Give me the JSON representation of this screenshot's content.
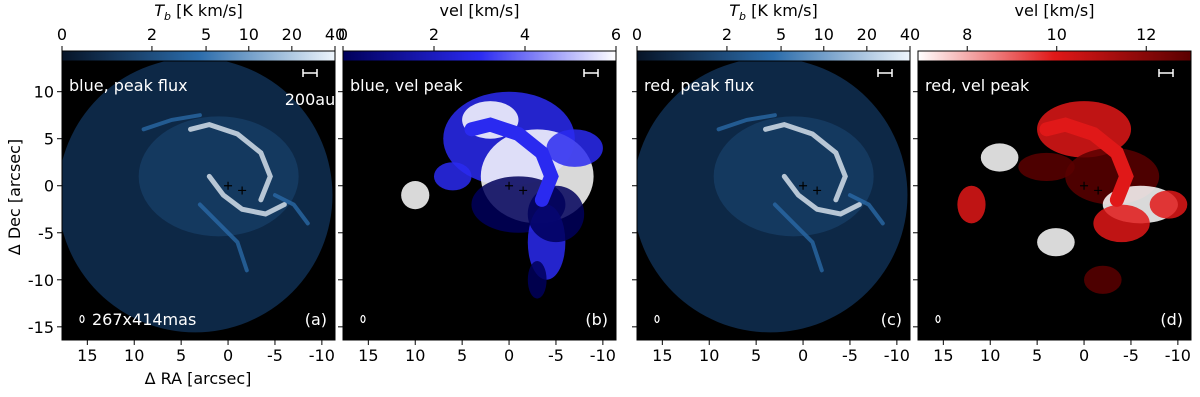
{
  "figure": {
    "ylabel": "Δ Dec [arcsec]",
    "xlabel": "Δ RA [arcsec]",
    "xlim": [
      17.7,
      -11.4
    ],
    "xticks": [
      15,
      10,
      5,
      0,
      -5,
      -10
    ],
    "ylim": [
      -16.4,
      13.9
    ],
    "yticks": [
      -15,
      -10,
      -5,
      0,
      5,
      10
    ],
    "scalebar_label": "200au",
    "beam_label": "267x414mas",
    "panels": [
      {
        "title": "blue, peak flux",
        "tag": "(a)",
        "kind": "flux",
        "cmap": [
          "#071427",
          "#2b6cab",
          "#eef5fc"
        ],
        "colorbar": {
          "label": {
            "symbol": "T",
            "subscript": "b",
            "unit": " [K km/s]"
          },
          "lim": [
            0,
            40
          ],
          "ticks": [
            0,
            2,
            5,
            10,
            20,
            40
          ],
          "scale": "asinh"
        }
      },
      {
        "title": "blue, vel peak",
        "tag": "(b)",
        "kind": "vel",
        "cmap": [
          "#00005a",
          "#2a2af0",
          "#ffffff"
        ],
        "colorbar": {
          "label": {
            "text": "vel [km/s]"
          },
          "lim": [
            0,
            6
          ],
          "ticks": [
            0,
            2,
            4,
            6
          ],
          "scale": "linear"
        }
      },
      {
        "title": "red, peak flux",
        "tag": "(c)",
        "kind": "flux",
        "cmap": [
          "#071427",
          "#2b6cab",
          "#eef5fc"
        ],
        "colorbar": {
          "label": {
            "symbol": "T",
            "subscript": "b",
            "unit": " [K km/s]"
          },
          "lim": [
            0,
            40
          ],
          "ticks": [
            0,
            2,
            5,
            10,
            20,
            40
          ],
          "scale": "asinh"
        }
      },
      {
        "title": "red, vel peak",
        "tag": "(d)",
        "kind": "vel",
        "cmap": [
          "#ffffff",
          "#e01818",
          "#5a0000"
        ],
        "colorbar": {
          "label": {
            "text": "vel [km/s]"
          },
          "lim": [
            6.9,
            13
          ],
          "ticks": [
            8,
            10,
            12
          ],
          "scale": "linear"
        }
      }
    ]
  }
}
